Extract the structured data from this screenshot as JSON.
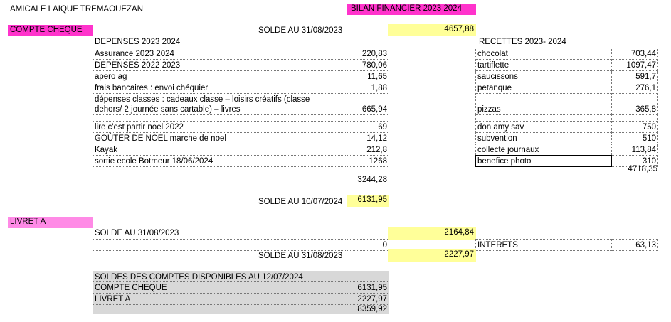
{
  "header": {
    "org": "AMICALE LAIQUE TREMAOUEZAN",
    "title": "BILAN FINANCIER 2023 2024"
  },
  "compte": {
    "label": "COMPTE CHEQUE",
    "solde_start_label": "SOLDE AU 31/08/2023",
    "solde_start_value": "4657,88",
    "depenses_title": "DEPENSES 2023 2024",
    "depenses": [
      {
        "label": "Assurance 2023 2024",
        "value": "220,83"
      },
      {
        "label": "DEPENSES 2022 2023",
        "value": "780,06"
      },
      {
        "label": "apero ag",
        "value": "11,65"
      },
      {
        "label": "frais bancaires : envoi chéquier",
        "value": "1,88"
      },
      {
        "label": "dépenses classes : cadeaux classe – loisirs créatifs (classe dehors/ 2 journée sans cartable) – livres",
        "value": "665,94"
      },
      {
        "label": "",
        "value": ""
      },
      {
        "label": "lire c'est partir noel 2022",
        "value": "69"
      },
      {
        "label": "GOÛTER DE NOEL marche de noel",
        "value": "14,12"
      },
      {
        "label": "Kayak",
        "value": "212,8"
      },
      {
        "label": "sortie ecole Botmeur 18/06/2024",
        "value": "1268"
      }
    ],
    "depenses_total": "3244,28",
    "recettes_title": "RECETTES 2023- 2024",
    "recettes": [
      {
        "label": "chocolat",
        "value": "703,44"
      },
      {
        "label": "tartiflette",
        "value": "1097,47"
      },
      {
        "label": "saucissons",
        "value": "591,7"
      },
      {
        "label": "petanque",
        "value": "276,1"
      },
      {
        "label": "pizzas",
        "value": "365,8"
      },
      {
        "label": "",
        "value": ""
      },
      {
        "label": "don amy sav",
        "value": "750"
      },
      {
        "label": "subvention",
        "value": "510"
      },
      {
        "label": "collecte journaux",
        "value": "113,84"
      },
      {
        "label": "benefice photo",
        "value": "310"
      }
    ],
    "recettes_total": "4718,35",
    "solde_end_label": "SOLDE AU 10/07/2024",
    "solde_end_value": "6131,95"
  },
  "livret": {
    "label": "LIVRET A",
    "solde_start_label": "SOLDE AU 31/08/2023",
    "solde_start_value": "2164,84",
    "zero_value": "0",
    "interets_label": "INTERETS",
    "interets_value": "63,13",
    "solde_end_label": "SOLDE AU 31/08/2023",
    "solde_end_value": "2227,97"
  },
  "summary": {
    "title": "SOLDES DES COMPTES DISPONIBLES AU 12/07/2024",
    "rows": [
      {
        "label": "COMPTE CHEQUE",
        "value": "6131,95"
      },
      {
        "label": "LIVRET A",
        "value": "2227,97"
      }
    ],
    "total": "8359,92"
  },
  "colors": {
    "magenta": "#ff33cc",
    "pink": "#ff8ae6",
    "yellow": "#ffff99",
    "gray": "#d8d8d8"
  }
}
